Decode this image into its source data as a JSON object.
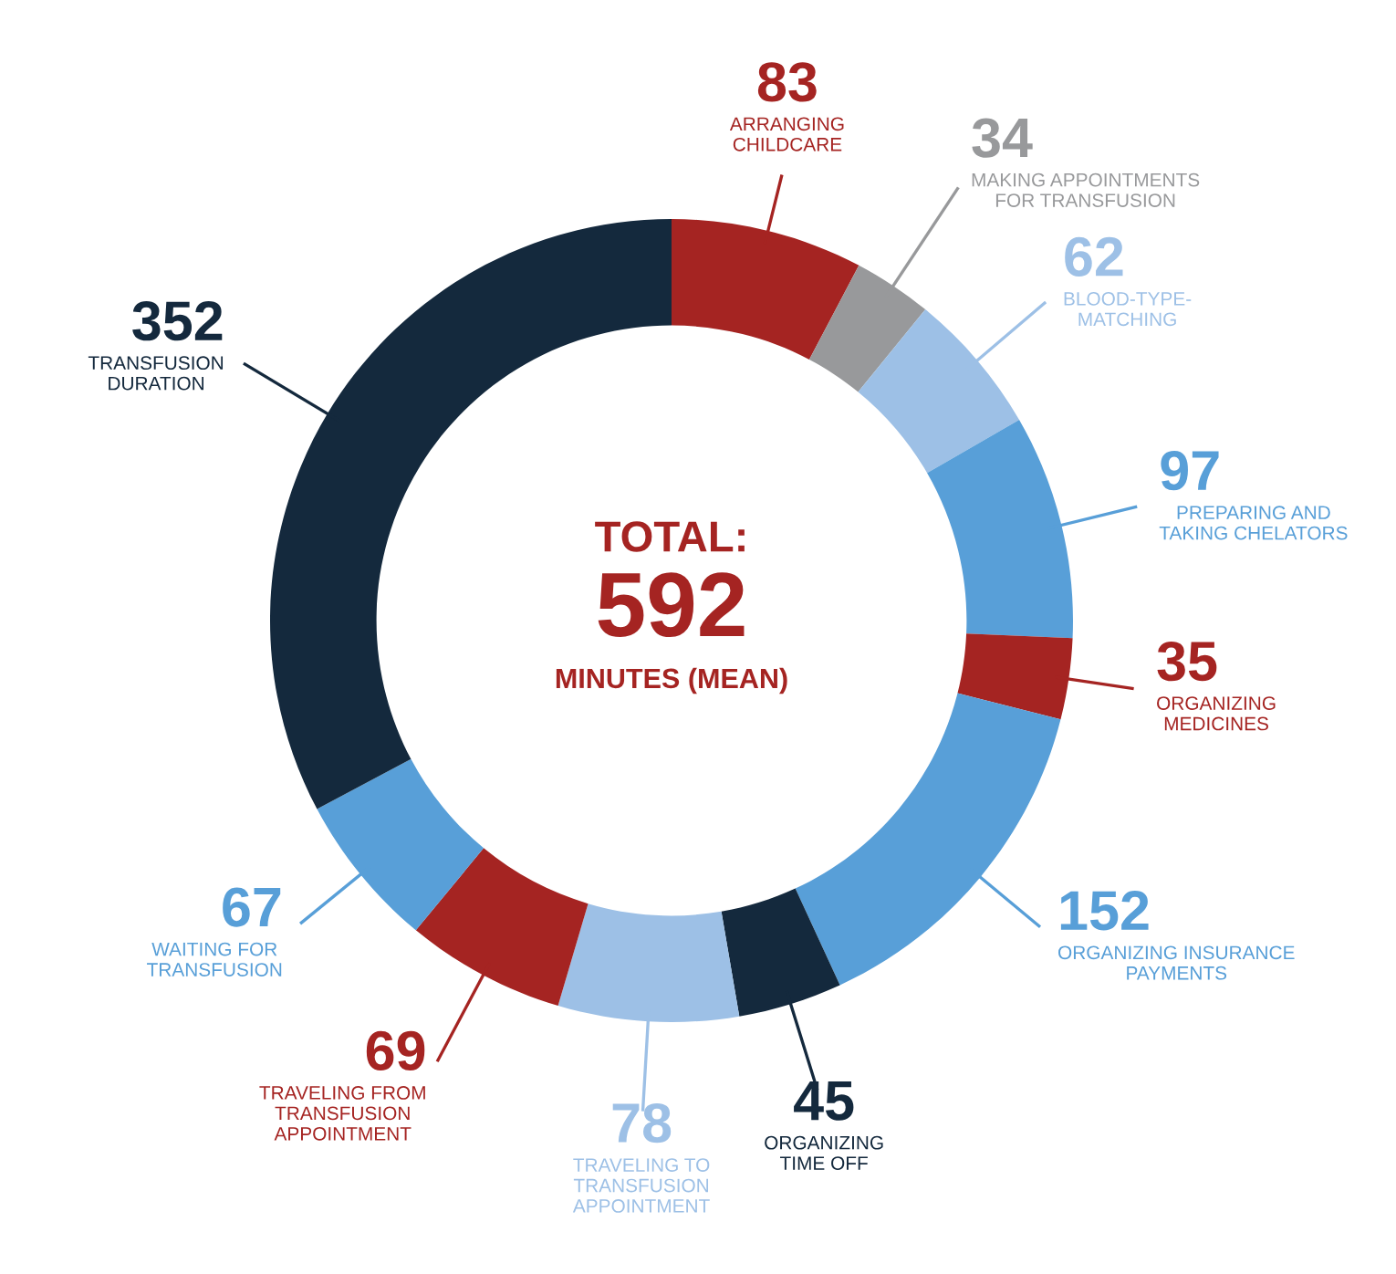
{
  "chart_data": {
    "type": "donut",
    "categories": [
      "ARRANGING\nCHILDCARE",
      "MAKING APPOINTMENTS\nFOR TRANSFUSION",
      "BLOOD-TYPE-\nMATCHING",
      "PREPARING AND\nTAKING CHELATORS",
      "ORGANIZING\nMEDICINES",
      "ORGANIZING INSURANCE\nPAYMENTS",
      "ORGANIZING\nTIME OFF",
      "TRAVELING TO\nTRANSFUSION\nAPPOINTMENT",
      "TRAVELING FROM\nTRANSFUSION\nAPPOINTMENT",
      "WAITING FOR\nTRANSFUSION",
      "TRANSFUSION\nDURATION"
    ],
    "values": [
      83,
      34,
      62,
      97,
      35,
      152,
      45,
      78,
      69,
      67,
      352
    ],
    "colors": [
      "#a52422",
      "#98999b",
      "#9dc0e6",
      "#589fd8",
      "#a52422",
      "#589fd8",
      "#14293d",
      "#9dc0e6",
      "#a52422",
      "#589fd8",
      "#14293d"
    ],
    "data_labels": true,
    "annotations": [
      "TOTAL:",
      "592",
      "MINUTES (MEAN)"
    ]
  }
}
